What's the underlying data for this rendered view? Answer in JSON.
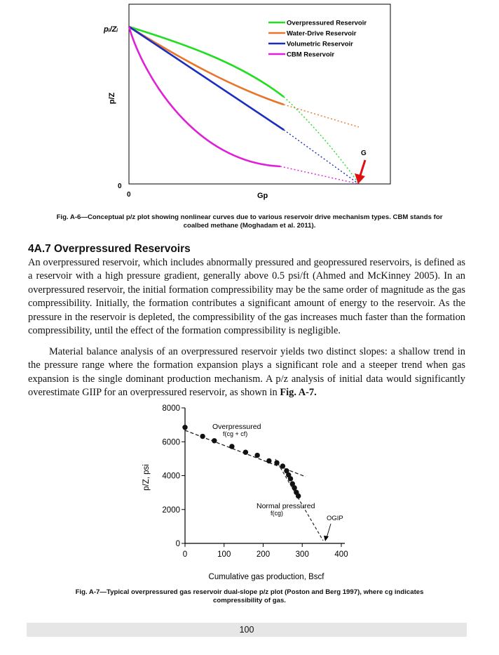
{
  "fig6": {
    "y_top_label": "pᵢ/Zᵢ",
    "ylabel": "p/Z",
    "xlabel": "Gp",
    "y_zero": "0",
    "x_zero": "0",
    "g_marker": "G",
    "legend": [
      {
        "label": "Overpressured Reservoir",
        "color": "#22dd22"
      },
      {
        "label": "Water-Drive Reservoir",
        "color": "#e8762a"
      },
      {
        "label": "Volumetric Reservoir",
        "color": "#1a2fbf"
      },
      {
        "label": "CBM Reservoir",
        "color": "#e020d8"
      }
    ],
    "caption_line1": "Fig. A-6—Conceptual p/z plot showing nonlinear curves due to various reservoir drive mechanism types. CBM stands for",
    "caption_line2": "coalbed methane (Moghadam et al. 2011)."
  },
  "section": {
    "heading": "4A.7 Overpressured Reservoirs",
    "para1": "An overpressured reservoir, which includes abnormally pressured and geopressured reservoirs, is defined as a reservoir with a high pressure gradient, generally above 0.5 psi/ft (Ahmed and McKinney 2005). In an overpressured reservoir, the initial formation compressibility may be the same order of magnitude as the gas compressibility. Initially, the formation contributes a significant amount of energy to the reservoir. As the pressure in the reservoir is depleted, the compressibility of the gas increases much faster than the formation compressibility, until the effect of the formation compressibility is negligible.",
    "para2_text": "Material balance analysis of an overpressured reservoir yields two distinct slopes: a shallow trend in the pressure range where the formation expansion plays a significant role and a steeper trend when gas expansion is the single dominant production mechanism. A p/z analysis of initial data would significantly overestimate GIIP for an overpressured reservoir, as shown in ",
    "para2_ref": "Fig. A-7."
  },
  "chart_data": {
    "type": "scatter",
    "title": "",
    "xlabel": "Cumulative gas production, Bscf",
    "ylabel": "p/Z, psi",
    "xlim": [
      0,
      400
    ],
    "ylim": [
      0,
      8000
    ],
    "x_ticks": [
      "0",
      "100",
      "200",
      "300",
      "400"
    ],
    "y_ticks": [
      "0",
      "2000",
      "4000",
      "6000",
      "8000"
    ],
    "series": [
      {
        "x": [
          0,
          45,
          75,
          120,
          155,
          185,
          215,
          235,
          250,
          260,
          265,
          270,
          275,
          280,
          285,
          290
        ],
        "y": [
          6850,
          6320,
          6060,
          5720,
          5380,
          5200,
          4870,
          4760,
          4560,
          4280,
          4040,
          3820,
          3520,
          3280,
          3010,
          2800
        ]
      }
    ],
    "annotations": {
      "overpressured_label": "Overpressured",
      "overpressured_formula": "f(cg + cf)",
      "normal_label": "Normal pressured",
      "normal_formula": "f(cg)",
      "ogip_label": "OGIP"
    },
    "caption_line1": "Fig. A-7—Typical overpressured gas reservoir dual-slope p/z plot (Poston and Berg 1997), where cg indicates",
    "caption_line2": "compressibility of gas."
  },
  "footer": {
    "page_number": "100"
  }
}
